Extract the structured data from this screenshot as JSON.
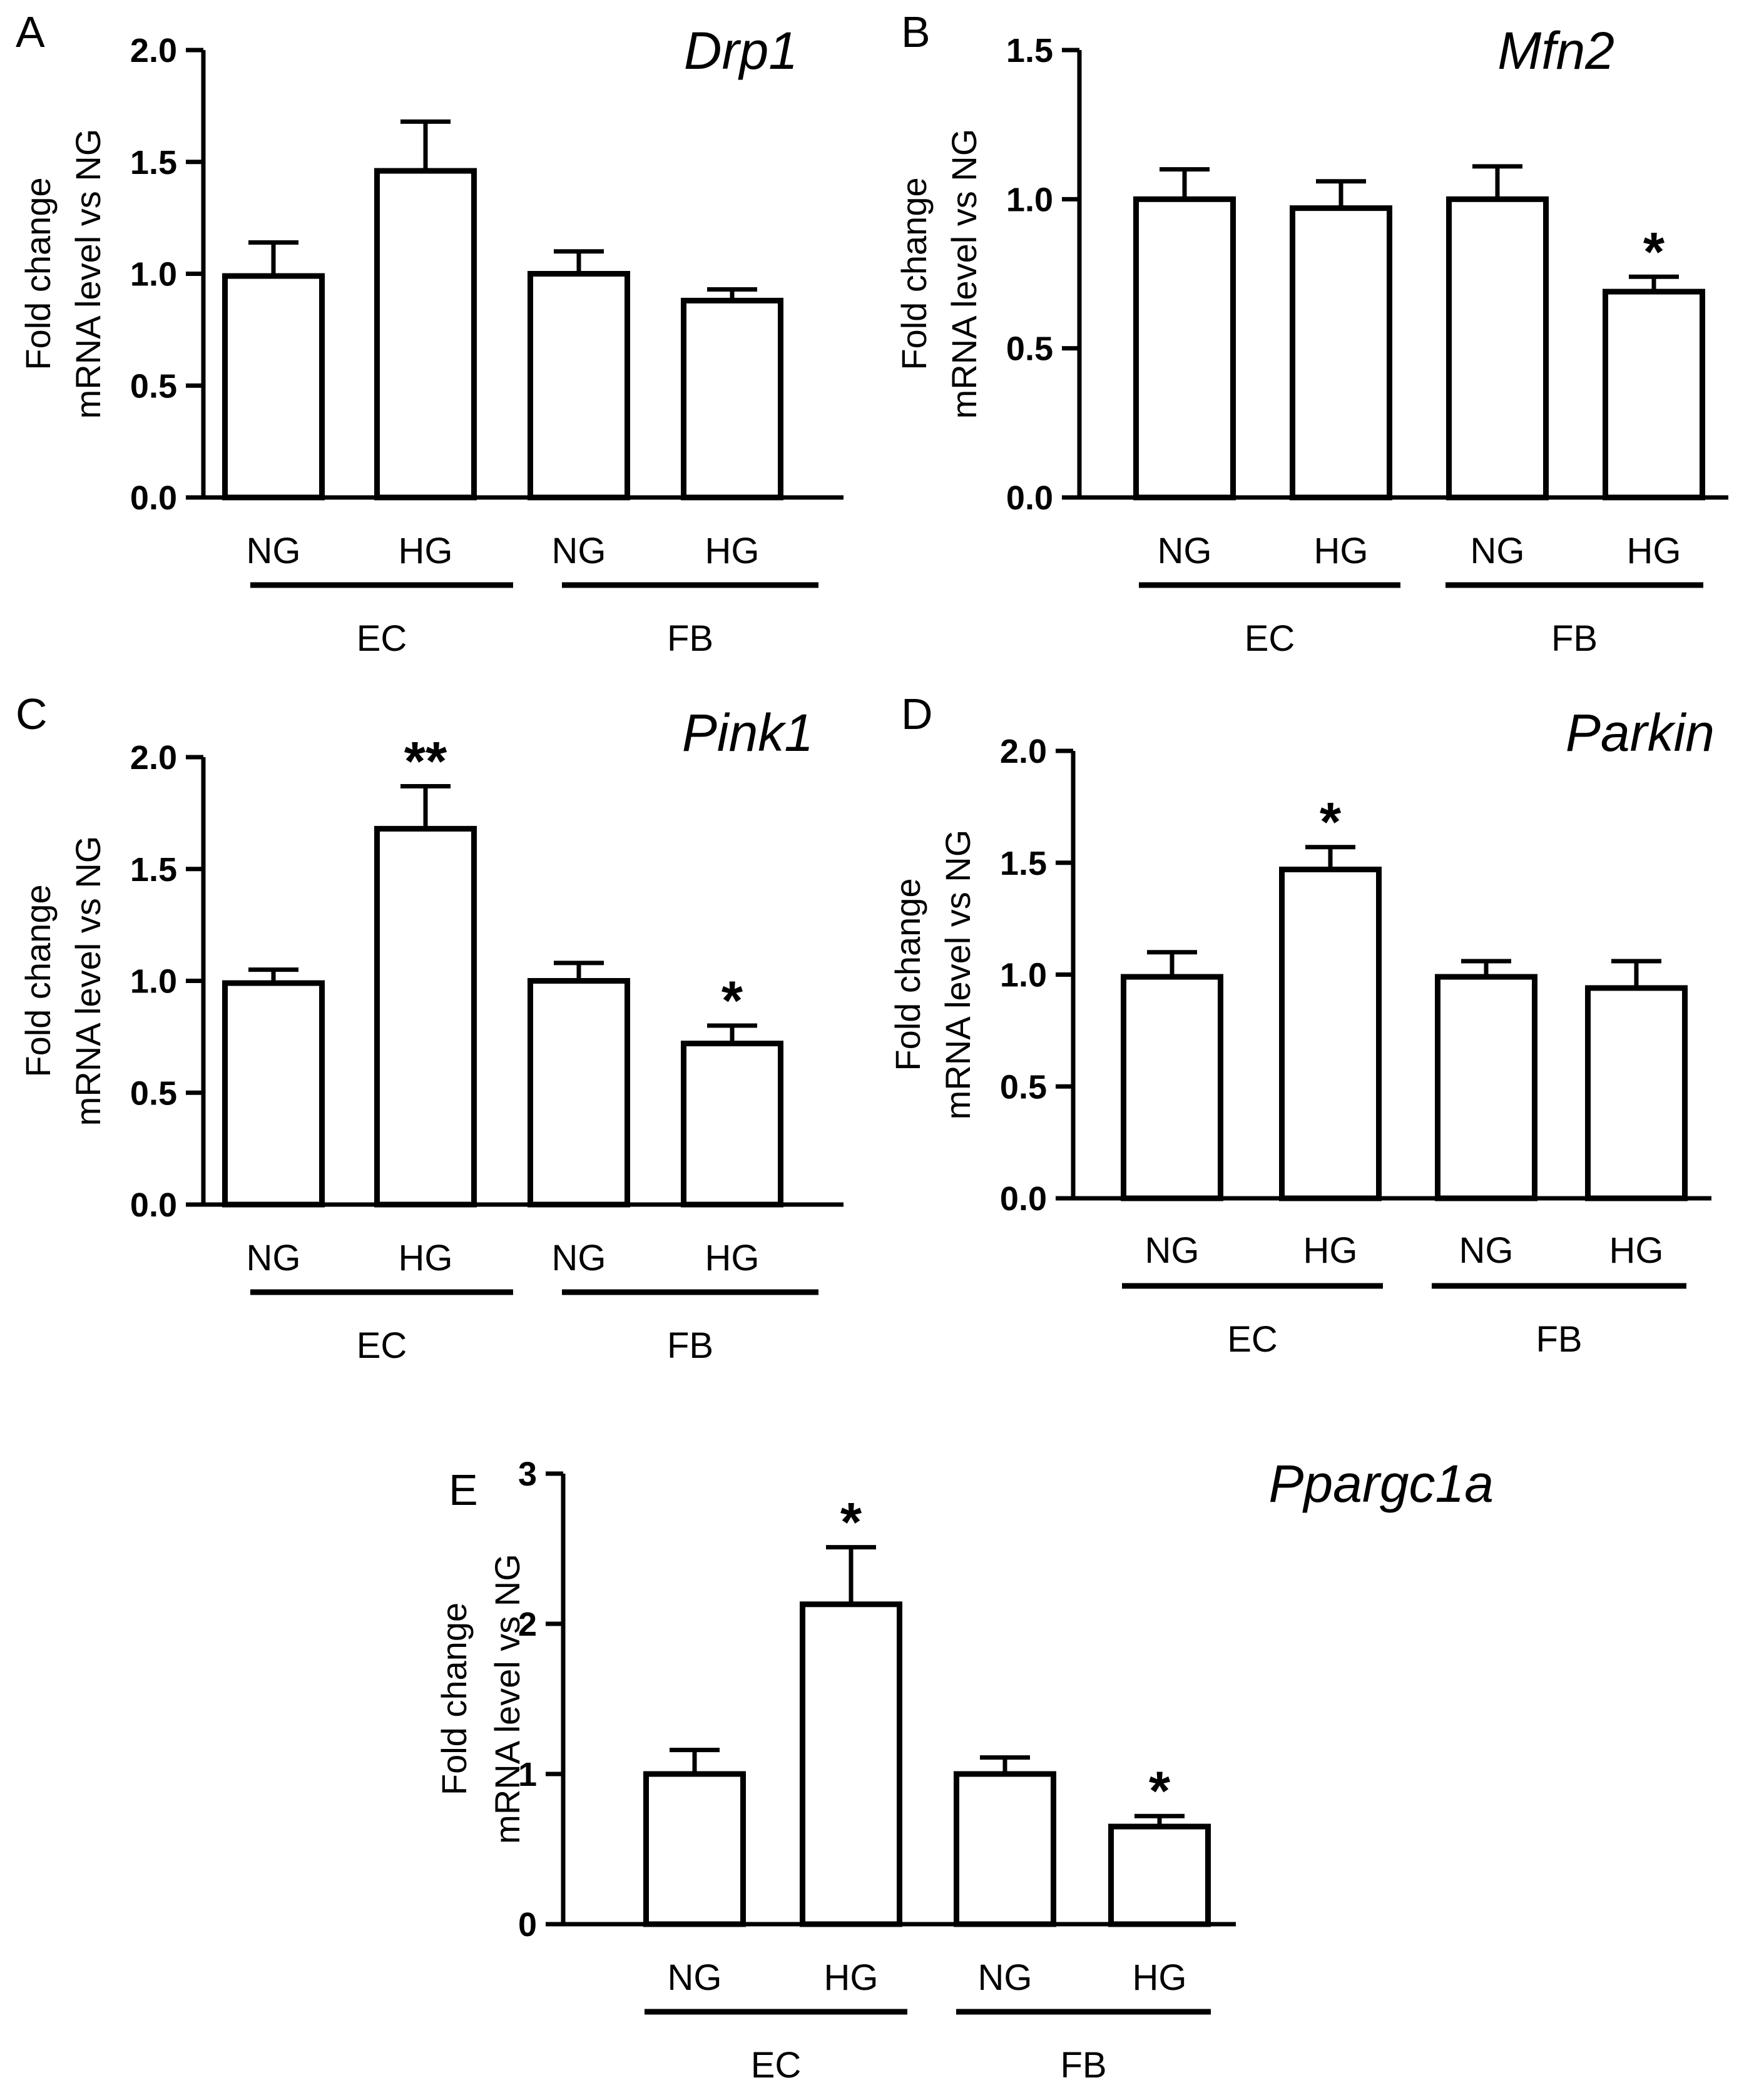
{
  "chart_data": [
    {
      "type": "bar",
      "panel": "A",
      "title": "Drp1",
      "ylabel": [
        "Fold change",
        "mRNA level vs NG"
      ],
      "categories": [
        "NG",
        "HG",
        "NG",
        "HG"
      ],
      "groups": [
        {
          "label": "EC"
        },
        {
          "label": "FB"
        }
      ],
      "values": [
        0.99,
        1.46,
        1.0,
        0.88
      ],
      "errors": [
        0.15,
        0.22,
        0.1,
        0.05
      ],
      "significance": [
        "",
        "",
        "",
        ""
      ],
      "ylim": [
        0,
        2.0
      ],
      "yticks": [
        0.0,
        0.5,
        1.0,
        1.5,
        2.0
      ],
      "ytick_labels": [
        "0.0",
        "0.5",
        "1.0",
        "1.5",
        "2.0"
      ]
    },
    {
      "type": "bar",
      "panel": "B",
      "title": "Mfn2",
      "ylabel": [
        "Fold change",
        "mRNA level vs NG"
      ],
      "categories": [
        "NG",
        "HG",
        "NG",
        "HG"
      ],
      "groups": [
        {
          "label": "EC"
        },
        {
          "label": "FB"
        }
      ],
      "values": [
        1.0,
        0.97,
        1.0,
        0.69
      ],
      "errors": [
        0.1,
        0.09,
        0.11,
        0.05
      ],
      "significance": [
        "",
        "",
        "",
        "*"
      ],
      "ylim": [
        0,
        1.5
      ],
      "yticks": [
        0.0,
        0.5,
        1.0,
        1.5
      ],
      "ytick_labels": [
        "0.0",
        "0.5",
        "1.0",
        "1.5"
      ]
    },
    {
      "type": "bar",
      "panel": "C",
      "title": "Pink1",
      "ylabel": [
        "Fold change",
        "mRNA level vs NG"
      ],
      "categories": [
        "NG",
        "HG",
        "NG",
        "HG"
      ],
      "groups": [
        {
          "label": "EC"
        },
        {
          "label": "FB"
        }
      ],
      "values": [
        0.99,
        1.68,
        1.0,
        0.72
      ],
      "errors": [
        0.06,
        0.19,
        0.08,
        0.08
      ],
      "significance": [
        "",
        "**",
        "",
        "*"
      ],
      "ylim": [
        0,
        2.0
      ],
      "yticks": [
        0.0,
        0.5,
        1.0,
        1.5,
        2.0
      ],
      "ytick_labels": [
        "0.0",
        "0.5",
        "1.0",
        "1.5",
        "2.0"
      ]
    },
    {
      "type": "bar",
      "panel": "D",
      "title": "Parkin",
      "ylabel": [
        "Fold change",
        "mRNA level vs NG"
      ],
      "categories": [
        "NG",
        "HG",
        "NG",
        "HG"
      ],
      "groups": [
        {
          "label": "EC"
        },
        {
          "label": "FB"
        }
      ],
      "values": [
        0.99,
        1.47,
        0.99,
        0.94
      ],
      "errors": [
        0.11,
        0.1,
        0.07,
        0.12
      ],
      "significance": [
        "",
        "*",
        "",
        ""
      ],
      "ylim": [
        0,
        2.0
      ],
      "yticks": [
        0.0,
        0.5,
        1.0,
        1.5,
        2.0
      ],
      "ytick_labels": [
        "0.0",
        "0.5",
        "1.0",
        "1.5",
        "2.0"
      ]
    },
    {
      "type": "bar",
      "panel": "E",
      "title": "Ppargc1a",
      "ylabel": [
        "Fold change",
        "mRNA level vs NG"
      ],
      "categories": [
        "NG",
        "HG",
        "NG",
        "HG"
      ],
      "groups": [
        {
          "label": "EC"
        },
        {
          "label": "FB"
        }
      ],
      "values": [
        1.0,
        2.13,
        1.0,
        0.65
      ],
      "errors": [
        0.16,
        0.38,
        0.11,
        0.07
      ],
      "significance": [
        "",
        "*",
        "",
        "*"
      ],
      "ylim": [
        0,
        3
      ],
      "yticks": [
        0,
        1,
        2,
        3
      ],
      "ytick_labels": [
        "0",
        "1",
        "2",
        "3"
      ]
    }
  ]
}
